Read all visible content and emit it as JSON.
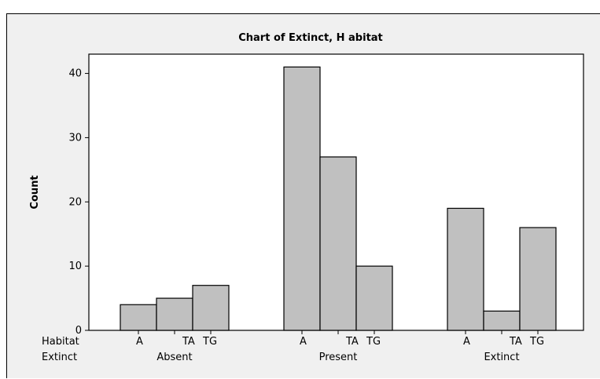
{
  "chart_data": {
    "type": "bar",
    "title": "Chart of Extinct, H abitat",
    "ylabel": "Count",
    "xlabel": "",
    "ylim": [
      0,
      43
    ],
    "yticks": [
      0,
      10,
      20,
      30,
      40
    ],
    "row_labels": [
      "Habitat",
      "Extinct"
    ],
    "groups": [
      {
        "name": "Absent",
        "categories": [
          "A",
          "TA",
          "TG"
        ],
        "values": [
          4,
          5,
          7
        ]
      },
      {
        "name": "Present",
        "categories": [
          "A",
          "TA",
          "TG"
        ],
        "values": [
          41,
          27,
          10
        ]
      },
      {
        "name": "Extinct",
        "categories": [
          "A",
          "TA",
          "TG"
        ],
        "values": [
          19,
          3,
          16
        ]
      }
    ],
    "bar_color": "#c0c0c0",
    "outline_color": "#000000",
    "plot_background": "#ffffff",
    "page_background": "#f0f0f0",
    "grid": false,
    "legend": "none"
  }
}
